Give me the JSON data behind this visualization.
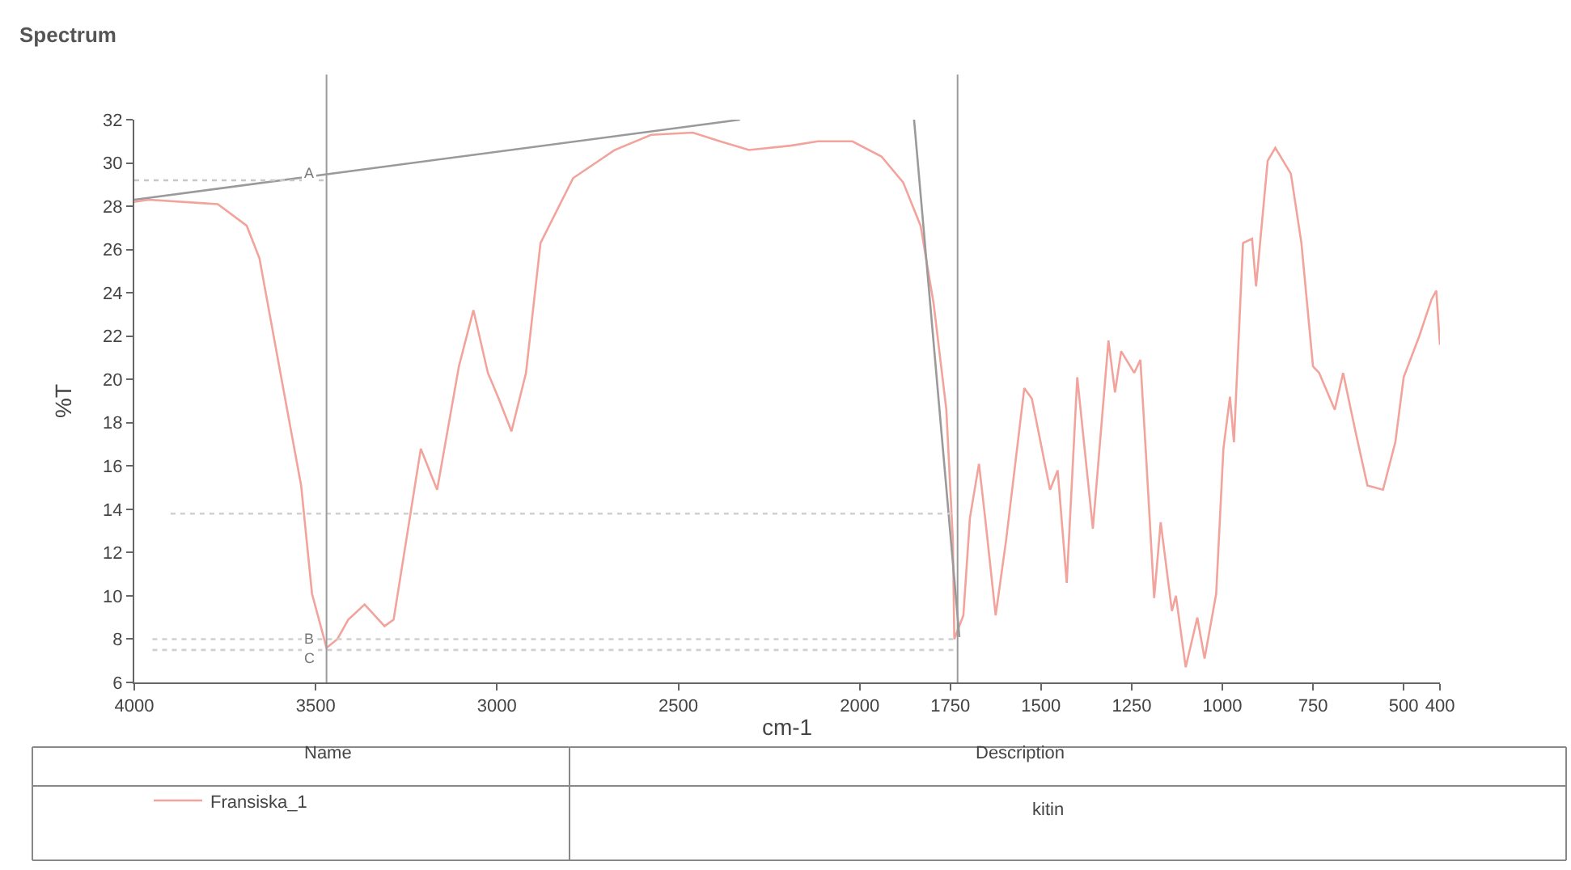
{
  "chart_data": {
    "type": "line",
    "title": "Spectrum",
    "xlabel": "cm-1",
    "ylabel": "%T",
    "xlim": [
      4000,
      400
    ],
    "xticks": [
      4000,
      3500,
      3000,
      2500,
      2000,
      1750,
      1500,
      1250,
      1000,
      750,
      500,
      400
    ],
    "ylim": [
      6,
      32
    ],
    "yticks": [
      6,
      8,
      10,
      12,
      14,
      16,
      18,
      20,
      22,
      24,
      26,
      28,
      30,
      32
    ],
    "legend": "bottom",
    "marker": "none",
    "series": [
      {
        "name": "Fransiska_1",
        "color": "#f2a39c",
        "line_style": "solid",
        "x": [
          4000,
          3960,
          3770,
          3690,
          3655,
          3595,
          3540,
          3510,
          3470,
          3440,
          3410,
          3365,
          3310,
          3285,
          3210,
          3165,
          3105,
          3065,
          3025,
          2995,
          2960,
          2920,
          2880,
          2790,
          2675,
          2575,
          2460,
          2385,
          2305,
          2190,
          2115,
          2020,
          1940,
          1880,
          1832,
          1796,
          1761,
          1743,
          1739,
          1714,
          1696,
          1671,
          1654,
          1625,
          1596,
          1546,
          1525,
          1475,
          1454,
          1429,
          1400,
          1357,
          1314,
          1296,
          1279,
          1243,
          1226,
          1210,
          1188,
          1170,
          1139,
          1128,
          1101,
          1069,
          1049,
          1017,
          997,
          979,
          968,
          943,
          918,
          907,
          875,
          854,
          811,
          782,
          750,
          733,
          690,
          667,
          633,
          600,
          557,
          523,
          500,
          457,
          423,
          410,
          400
        ],
        "values": [
          28.2,
          28.3,
          28.1,
          27.1,
          25.6,
          20.1,
          15.1,
          10.1,
          7.6,
          8.0,
          8.9,
          9.6,
          8.6,
          8.9,
          16.8,
          14.9,
          20.6,
          23.2,
          20.3,
          19.1,
          17.6,
          20.3,
          26.3,
          29.3,
          30.6,
          31.3,
          31.4,
          31.0,
          30.6,
          30.8,
          31.0,
          31.0,
          30.3,
          29.1,
          27.1,
          23.5,
          18.6,
          12.6,
          8.0,
          9.1,
          13.6,
          16.1,
          13.6,
          9.1,
          12.6,
          19.6,
          19.1,
          14.9,
          15.8,
          10.6,
          20.1,
          13.1,
          21.8,
          19.4,
          21.3,
          20.3,
          20.9,
          16.4,
          9.9,
          13.4,
          9.3,
          10.0,
          6.7,
          9.0,
          7.1,
          10.1,
          16.8,
          19.2,
          17.1,
          26.3,
          26.5,
          24.3,
          30.1,
          30.7,
          29.5,
          26.3,
          20.6,
          20.3,
          18.6,
          20.3,
          17.6,
          15.1,
          14.9,
          17.1,
          20.1,
          22.0,
          23.7,
          24.1,
          21.6
        ]
      },
      {
        "color": "#9a9a9a",
        "line_style": "solid",
        "x": [
          4000,
          2330
        ],
        "values": [
          28.3,
          32
        ]
      },
      {
        "color": "#9a9a9a",
        "line_style": "solid",
        "x": [
          1850,
          1725
        ],
        "values": [
          32,
          8.1
        ]
      },
      {
        "color": "#c8c8c8",
        "line_style": "dotted",
        "x": [
          4000,
          3470
        ],
        "values": [
          29.2,
          29.2
        ]
      },
      {
        "color": "#d0d0d0",
        "line_style": "dotted",
        "x": [
          3900,
          1730
        ],
        "values": [
          13.8,
          13.8
        ]
      },
      {
        "color": "#d0d0d0",
        "line_style": "dotted",
        "x": [
          3950,
          1730
        ],
        "values": [
          8.0,
          8.0
        ]
      },
      {
        "color": "#d0d0d0",
        "line_style": "dotted",
        "x": [
          3950,
          1730
        ],
        "values": [
          7.5,
          7.5
        ]
      }
    ],
    "ref_lines": [
      {
        "axis": "x",
        "value": 3470,
        "color": "#9a9a9a"
      },
      {
        "axis": "x",
        "value": 1730,
        "color": "#9a9a9a"
      }
    ],
    "annotations": [
      "A",
      "B",
      "C",
      "Name",
      "Description",
      "kitin"
    ]
  }
}
